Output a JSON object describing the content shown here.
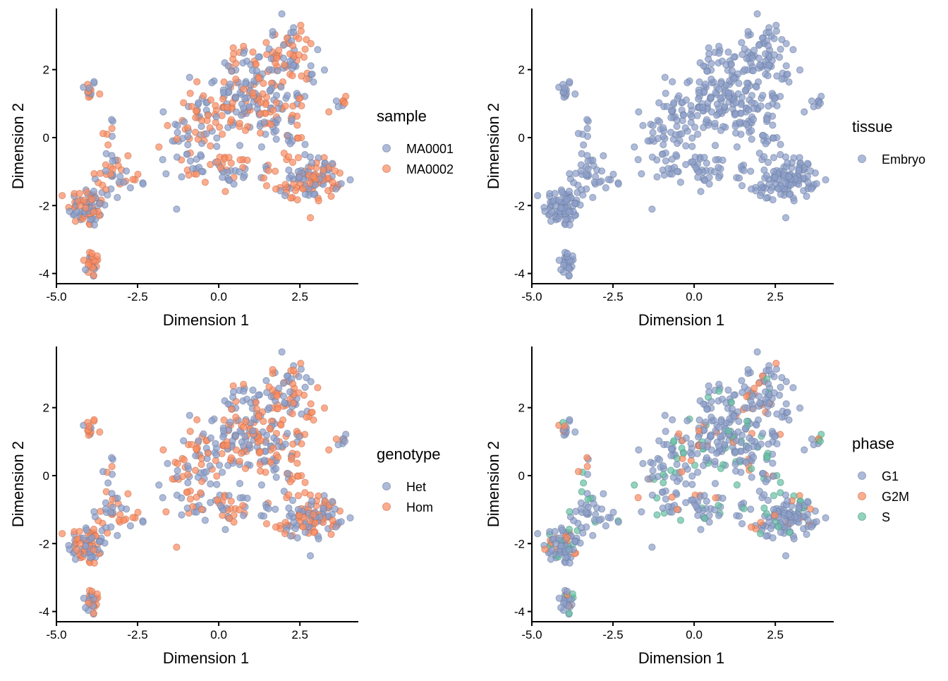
{
  "colors": {
    "blue": "#8da0cb",
    "orange": "#fc8d62",
    "green": "#66c2a5"
  },
  "chart_data": [
    {
      "type": "scatter",
      "xlabel": "Dimension 1",
      "ylabel": "Dimension 2",
      "xlim": [
        -5.0,
        4.3
      ],
      "ylim": [
        -4.3,
        3.8
      ],
      "xticks": [
        "-5.0",
        "-2.5",
        "0.0",
        "2.5"
      ],
      "yticks": [
        "-4",
        "-2",
        "0",
        "2"
      ],
      "grid": false,
      "legend_position": "right",
      "legend_title": "sample",
      "series": [
        {
          "name": "MA0001",
          "color": "#8da0cb"
        },
        {
          "name": "MA0002",
          "color": "#fc8d62"
        }
      ],
      "color_mix": [
        0.52,
        0.48,
        0.0
      ]
    },
    {
      "type": "scatter",
      "xlabel": "Dimension 1",
      "ylabel": "Dimension 2",
      "xlim": [
        -5.0,
        4.3
      ],
      "ylim": [
        -4.3,
        3.8
      ],
      "xticks": [
        "-5.0",
        "-2.5",
        "0.0",
        "2.5"
      ],
      "yticks": [
        "-4",
        "-2",
        "0",
        "2"
      ],
      "grid": false,
      "legend_position": "right",
      "legend_title": "tissue",
      "series": [
        {
          "name": "Embryo",
          "color": "#8da0cb"
        }
      ],
      "color_mix": [
        1.0,
        0.0,
        0.0
      ]
    },
    {
      "type": "scatter",
      "xlabel": "Dimension 1",
      "ylabel": "Dimension 2",
      "xlim": [
        -5.0,
        4.3
      ],
      "ylim": [
        -4.3,
        3.8
      ],
      "xticks": [
        "-5.0",
        "-2.5",
        "0.0",
        "2.5"
      ],
      "yticks": [
        "-4",
        "-2",
        "0",
        "2"
      ],
      "grid": false,
      "legend_position": "right",
      "legend_title": "genotype",
      "series": [
        {
          "name": "Het",
          "color": "#8da0cb"
        },
        {
          "name": "Hom",
          "color": "#fc8d62"
        }
      ],
      "color_mix": [
        0.5,
        0.5,
        0.0
      ]
    },
    {
      "type": "scatter",
      "xlabel": "Dimension 1",
      "ylabel": "Dimension 2",
      "xlim": [
        -5.0,
        4.3
      ],
      "ylim": [
        -4.3,
        3.8
      ],
      "xticks": [
        "-5.0",
        "-2.5",
        "0.0",
        "2.5"
      ],
      "yticks": [
        "-4",
        "-2",
        "0",
        "2"
      ],
      "grid": false,
      "legend_position": "right",
      "legend_title": "phase",
      "series": [
        {
          "name": "G1",
          "color": "#8da0cb"
        },
        {
          "name": "G2M",
          "color": "#fc8d62"
        },
        {
          "name": "S",
          "color": "#66c2a5"
        }
      ],
      "color_mix": [
        0.75,
        0.12,
        0.13
      ]
    }
  ],
  "clusters": [
    {
      "cx": -4.0,
      "cy": 1.4,
      "sx": 0.12,
      "sy": 0.16,
      "n": 14
    },
    {
      "cx": -3.9,
      "cy": -3.7,
      "sx": 0.14,
      "sy": 0.22,
      "n": 24
    },
    {
      "cx": -4.05,
      "cy": -2.05,
      "sx": 0.3,
      "sy": 0.3,
      "n": 75
    },
    {
      "cx": -3.3,
      "cy": -1.15,
      "sx": 0.35,
      "sy": 0.45,
      "n": 28
    },
    {
      "cx": -3.35,
      "cy": 0.0,
      "sx": 0.1,
      "sy": 0.4,
      "n": 10
    },
    {
      "cx": -2.6,
      "cy": -1.2,
      "sx": 0.3,
      "sy": 0.25,
      "n": 8
    },
    {
      "cx": -1.5,
      "cy": -0.6,
      "sx": 0.25,
      "sy": 0.35,
      "n": 7
    },
    {
      "cx": -0.6,
      "cy": 0.2,
      "sx": 0.45,
      "sy": 0.55,
      "n": 40
    },
    {
      "cx": 0.3,
      "cy": 1.0,
      "sx": 0.55,
      "sy": 0.65,
      "n": 95
    },
    {
      "cx": 1.2,
      "cy": 1.6,
      "sx": 0.5,
      "sy": 0.6,
      "n": 70
    },
    {
      "cx": 2.0,
      "cy": 2.5,
      "sx": 0.45,
      "sy": 0.45,
      "n": 50
    },
    {
      "cx": 2.4,
      "cy": 0.8,
      "sx": 0.3,
      "sy": 0.9,
      "n": 55
    },
    {
      "cx": 1.6,
      "cy": 0.2,
      "sx": 0.3,
      "sy": 0.6,
      "n": 22
    },
    {
      "cx": 0.2,
      "cy": -0.9,
      "sx": 0.65,
      "sy": 0.25,
      "n": 48
    },
    {
      "cx": 3.0,
      "cy": -1.2,
      "sx": 0.35,
      "sy": 0.3,
      "n": 90
    },
    {
      "cx": 2.1,
      "cy": -1.35,
      "sx": 0.3,
      "sy": 0.25,
      "n": 22
    },
    {
      "cx": 3.85,
      "cy": 1.05,
      "sx": 0.12,
      "sy": 0.15,
      "n": 8
    },
    {
      "cx": 3.4,
      "cy": 0.7,
      "sx": 0.05,
      "sy": 0.05,
      "n": 1
    },
    {
      "cx": -1.7,
      "cy": 0.35,
      "sx": 0.05,
      "sy": 0.05,
      "n": 1
    }
  ]
}
